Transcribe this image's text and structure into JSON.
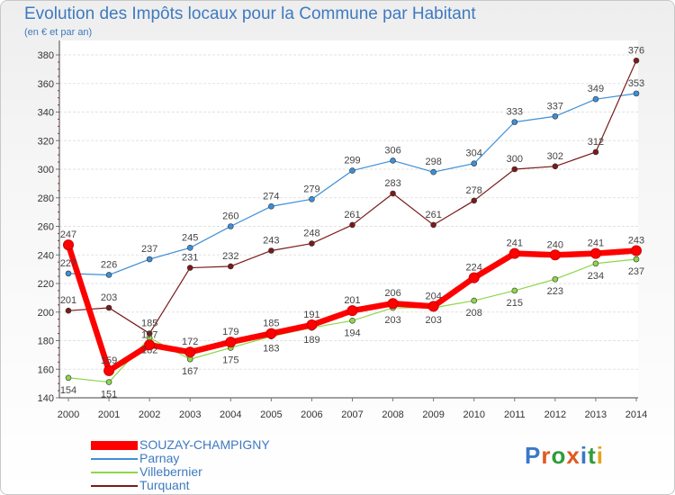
{
  "chart_data": {
    "type": "line",
    "title": "Evolution des Impôts locaux pour la Commune par Habitant",
    "subtitle": "(en € et par an)",
    "x": [
      "2000",
      "2001",
      "2002",
      "2003",
      "2004",
      "2005",
      "2006",
      "2007",
      "2008",
      "2009",
      "2010",
      "2011",
      "2012",
      "2013",
      "2014"
    ],
    "ylim": [
      140,
      380
    ],
    "yticks": [
      140,
      160,
      180,
      200,
      220,
      240,
      260,
      280,
      300,
      320,
      340,
      360,
      380
    ],
    "grid": "horizontal",
    "series": [
      {
        "name": "SOUZAY-CHAMPIGNY",
        "color": "#ff0000",
        "values": [
          247,
          159,
          177,
          172,
          179,
          185,
          191,
          201,
          206,
          204,
          224,
          241,
          240,
          241,
          243
        ]
      },
      {
        "name": "Parnay",
        "color": "#3d8fd6",
        "values": [
          227,
          226,
          237,
          245,
          260,
          274,
          279,
          299,
          306,
          298,
          304,
          333,
          337,
          349,
          353
        ]
      },
      {
        "name": "Villebernier",
        "color": "#8ed64b",
        "values": [
          154,
          151,
          182,
          167,
          175,
          183,
          189,
          194,
          203,
          203,
          208,
          215,
          223,
          234,
          237
        ]
      },
      {
        "name": "Turquant",
        "color": "#7a1a1a",
        "values": [
          201,
          203,
          185,
          231,
          232,
          243,
          248,
          261,
          283,
          261,
          278,
          300,
          302,
          312,
          376
        ]
      }
    ]
  },
  "brand": {
    "text": "Proxiti"
  }
}
